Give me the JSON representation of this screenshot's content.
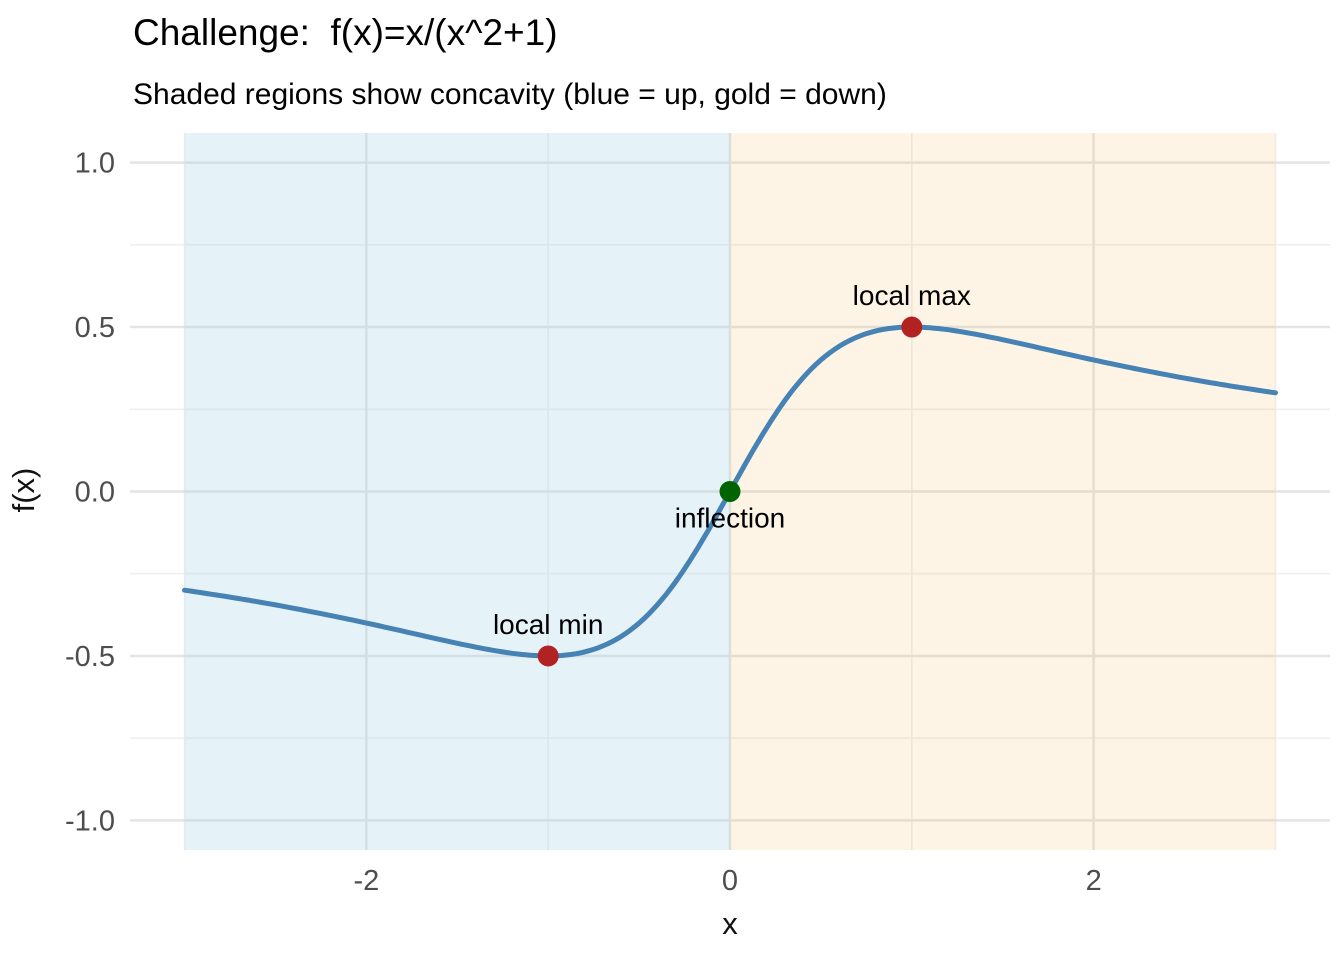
{
  "title": "Challenge:  f(x)=x/(x^2+1)",
  "subtitle": "Shaded regions show concavity (blue = up, gold = down)",
  "axes": {
    "x_label": "x",
    "y_label": "f(x)"
  },
  "colors": {
    "background": "#FFFFFF",
    "curve": "#4682B4",
    "extremum_point": "#B22222",
    "inflection_point": "#006400",
    "concave_up_region": "#E6F2F8",
    "concave_down_region": "#FDF5E8",
    "grid_major": "#E4E4E4",
    "grid_minor": "#EFEFEF",
    "tick_text": "#4D4D4D"
  },
  "chart_data": {
    "type": "line",
    "title": "Challenge:  f(x)=x/(x^2+1)",
    "subtitle": "Shaded regions show concavity (blue = up, gold = down)",
    "xlabel": "x",
    "ylabel": "f(x)",
    "expression": "f(x) = x/(x^2+1)",
    "expression_js": "x/(x*x+1)",
    "domain": [
      -3,
      3
    ],
    "xlim": [
      -3.3,
      3.3
    ],
    "ylim": [
      -1.09,
      1.09
    ],
    "grid": true,
    "legend": "none",
    "x_major_ticks": [
      -2,
      0,
      2
    ],
    "x_tick_labels": [
      "-2",
      "0",
      "2"
    ],
    "x_minor_ticks": [
      -3,
      -1,
      1,
      3
    ],
    "y_major_ticks": [
      1.0,
      0.5,
      0.0,
      -0.5,
      -1.0
    ],
    "y_tick_labels": [
      "1.0",
      "0.5",
      "0.0",
      "-0.5",
      "-1.0"
    ],
    "y_minor_ticks": [
      0.75,
      0.25,
      -0.25,
      -0.75
    ],
    "curve_color": "#4682B4",
    "curve_width": 5,
    "samples": [
      [
        -3.0,
        -0.3
      ],
      [
        -2.5,
        -0.3448
      ],
      [
        -2.0,
        -0.4
      ],
      [
        -1.5,
        -0.4615
      ],
      [
        -1.0,
        -0.5
      ],
      [
        -0.5,
        -0.4
      ],
      [
        0.0,
        0.0
      ],
      [
        0.5,
        0.4
      ],
      [
        1.0,
        0.5
      ],
      [
        1.5,
        0.4615
      ],
      [
        2.0,
        0.4
      ],
      [
        2.5,
        0.3448
      ],
      [
        3.0,
        0.3
      ]
    ],
    "regions": [
      {
        "name": "concave-up",
        "concavity": "up",
        "from": -3,
        "to": 0,
        "fill": "rgba(173,216,230,0.32)"
      },
      {
        "name": "concave-down",
        "concavity": "down",
        "from": 0,
        "to": 3,
        "fill": "rgba(244,188,98,0.16)"
      }
    ],
    "points": [
      {
        "label": "local min",
        "x": -1,
        "y": -0.5,
        "color": "#B22222",
        "label_dy": -22
      },
      {
        "label": "inflection",
        "x": 0,
        "y": 0.0,
        "color": "#006400",
        "label_dy": 36
      },
      {
        "label": "local max",
        "x": 1,
        "y": 0.5,
        "color": "#B22222",
        "label_dy": -22
      }
    ]
  }
}
